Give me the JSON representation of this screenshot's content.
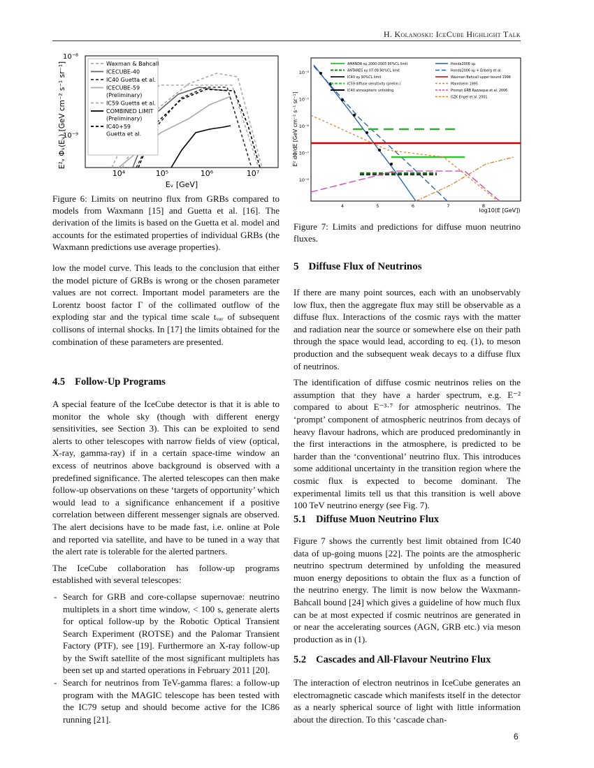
{
  "header": {
    "running_title": "H. Kolanoski: IceCube Highlight Talk"
  },
  "figure6": {
    "y_label": "E²ᵥ Φᵥ(Eᵥ)  [GeV cm⁻² s⁻¹ sr⁻¹]",
    "x_label": "Eᵥ  [GeV]",
    "x_ticks": [
      "10⁴",
      "10⁵",
      "10⁶",
      "10⁷"
    ],
    "y_ticks": [
      "10⁻⁸",
      "10⁻⁹"
    ],
    "legend": [
      [
        "Waxman & Bahcall"
      ],
      [
        "ICECUBE-40"
      ],
      [
        "IC40 Guetta et al."
      ],
      [
        "ICECUBE-59",
        "(Preliminary)"
      ],
      [
        "IC59 Guetta et al."
      ],
      [
        "COMBINED LIMIT",
        "(Preliminary)"
      ],
      [
        "IC40+59",
        "Guetta et al."
      ]
    ],
    "caption": "Figure 6: Limits on neutrino flux from GRBs compared to models from Waxmann [15] and Guetta et al. [16]. The derivation of the limits is based on the Guetta et al. model and accounts for the estimated properties of individual GRBs (the Waxmann predictions use average properties)."
  },
  "figure7": {
    "y_label": "E² dΦ/dE [GeV cm⁻² s⁻¹ sr⁻¹]",
    "x_label": "log10(E [GeV])",
    "x_ticks": [
      "4",
      "5",
      "6",
      "7",
      "8"
    ],
    "y_ticks": [
      "10⁻⁴",
      "10⁻⁵",
      "10⁻⁶",
      "10⁻⁷",
      "10⁻⁸"
    ],
    "legend_left": [
      "AMANDA νμ 2000-2003 90%CL limit",
      "ANTARES νμ 07-09 90%CL limit",
      "IC40 νμ 90%CL limit",
      "IC59 diffuse sensitivity (prelim.)",
      "IC40 atmospheric unfolding"
    ],
    "legend_right": [
      "Honda2006 νμ",
      "Honda2006 νμ + Enberg et al.",
      "Waxman Bahcall upper bound 1998",
      "Mannheim 1995",
      "Prompt GRB Razzaque et al. 2006",
      "GZK Engel et al. 2001"
    ],
    "caption": "Figure 7: Limits and predictions for diffuse muon neutrino fluxes."
  },
  "left_column": {
    "p1": "low the model curve.  This leads to the conclusion that either the model picture of GRBs is wrong or the chosen parameter values are not correct.  Important model parameters are the Lorentz boost factor Γ of the collimated outflow of the exploding star and the typical time scale tᵥₐᵣ of subsequent collisons of internal shocks.  In [17] the limits obtained for the combination of these parameters are presented.",
    "section_4_5": {
      "number": "4.5",
      "title": "Follow-Up Programs"
    },
    "p2": "A special feature of the IceCube detector is that it is able to monitor the whole sky (though with different energy sensitivities, see Section 3).  This can be exploited to send alerts to other telescopes with narrow fields of view (optical, X-ray, gamma-ray) if in a certain space-time window an excess of neutrinos above background is observed with a predefined significance. The alerted telescopes can then make follow-up observations on these ‘targets of opportunity’ which would lead to a significance enhancement if a positive correlation between different messenger signals are observed.  The alert decisions have to be made fast, i.e. online at Pole and reported via satellite, and have to be tuned in a way that the alert rate is tolerable for the alerted partners.",
    "p3": "The IceCube collaboration has follow-up programs established with several telescopes:",
    "bullets": [
      "Search for GRB and core-collapse supernovae: neutrino multiplets in a short time window, < 100 s, generate alerts for optical follow-up by the Robotic Optical Transient Search Experiment (ROTSE) and the Palomar Transient Factory (PTF), see [19]. Furthermore an X-ray follow-up by the Swift satellite of the most significant multiplets has been set up and started operations in February 2011 [20].",
      "Search for neutrinos from TeV-gamma flares: a follow-up program with the MAGIC telescope has been tested with the IC79 setup and should become active for the IC86 running [21]."
    ]
  },
  "right_column": {
    "section_5": {
      "number": "5",
      "title": "Diffuse Flux of Neutrinos"
    },
    "p1": "If there are many point sources, each with an unobservably low flux, then the aggregate flux may still be observable as a diffuse flux.  Interactions of the cosmic rays with the matter and radiation near the source or somewhere else on their path through the space would lead, according to eq. (1), to meson production and the subsequent weak decays to a diffuse flux of neutrinos.",
    "p2": "The identification of diffuse cosmic neutrinos relies on the assumption that they have a harder spectrum, e.g. E⁻² compared to about E⁻³·⁷ for atmospheric neutrinos.  The ‘prompt’ component of atmospheric neutrinos from decays of heavy flavour hadrons, which are produced predominantly in the first interactions in the atmosphere, is predicted to be harder than the ‘conventional’ neutrino flux. This introduces some additional uncertainty in the transition region where the cosmic flux is expected to become dominant.  The experimental limits tell us that this transition is well above 100 TeV neutrino energy (see Fig. 7).",
    "section_5_1": {
      "number": "5.1",
      "title": "Diffuse Muon Neutrino Flux"
    },
    "p3": "Figure 7 shows the currently best limit obtained from IC40 data of up-going muons [22].  The points are the atmospheric neutrino spectrum determined by unfolding the measured muon energy depositions to obtain the flux as a function of the neutrino energy.  The limit is now below the Waxmann-Bahcall bound [24] which gives a guideline of how much flux can be at most expected if cosmic neutrinos are generated in or near the accelerating sources (AGN, GRB etc.) via meson production as in (1).",
    "section_5_2": {
      "number": "5.2",
      "title": "Cascades and All-Flavour Neutrino Flux"
    },
    "p4": "The interaction of electron neutrinos in IceCube generates an electromagnetic cascade which manifests itself in the detector as a nearly spherical source of light with little information about the direction.  To this ‘cascade chan-"
  },
  "footer": {
    "page_number": "6"
  }
}
